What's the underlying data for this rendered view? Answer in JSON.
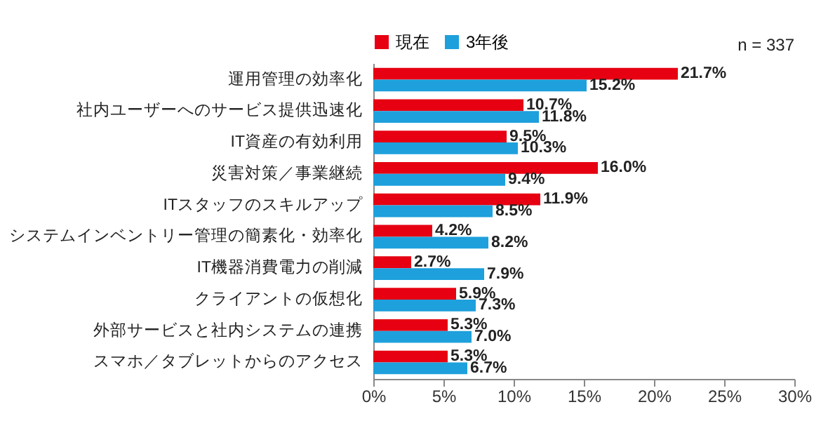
{
  "chart_data": {
    "type": "bar",
    "orientation": "horizontal",
    "categories": [
      "運用管理の効率化",
      "社内ユーザーへのサービス提供迅速化",
      "IT資産の有効利用",
      "災害対策／事業継続",
      "ITスタッフのスキルアップ",
      "システムインベントリー管理の簡素化・効率化",
      "IT機器消費電力の削減",
      "クライアントの仮想化",
      "外部サービスと社内システムの連携",
      "スマホ／タブレットからのアクセス"
    ],
    "series": [
      {
        "name": "現在",
        "color": "#e60012",
        "values": [
          21.7,
          10.7,
          9.5,
          16.0,
          11.9,
          4.2,
          2.7,
          5.9,
          5.3,
          5.3
        ],
        "value_labels": [
          "21.7%",
          "10.7%",
          "9.5%",
          "16.0%",
          "11.9%",
          "4.2%",
          "2.7%",
          "5.9%",
          "5.3%",
          "5.3%"
        ]
      },
      {
        "name": "3年後",
        "color": "#1ea0dc",
        "values": [
          15.2,
          11.8,
          10.3,
          9.4,
          8.5,
          8.2,
          7.9,
          7.3,
          7.0,
          6.7
        ],
        "value_labels": [
          "15.2%",
          "11.8%",
          "10.3%",
          "9.4%",
          "8.5%",
          "8.2%",
          "7.9%",
          "7.3%",
          "7.0%",
          "6.7%"
        ]
      }
    ],
    "xlim": [
      0,
      30
    ],
    "xticks": [
      {
        "value": 0,
        "label": "0%"
      },
      {
        "value": 5,
        "label": "5%"
      },
      {
        "value": 10,
        "label": "10%"
      },
      {
        "value": 15,
        "label": "15%"
      },
      {
        "value": 20,
        "label": "20%"
      },
      {
        "value": 25,
        "label": "25%"
      },
      {
        "value": 30,
        "label": "30%"
      }
    ],
    "legend": "top left",
    "grid": false,
    "annotations": [
      "n = 337"
    ]
  }
}
